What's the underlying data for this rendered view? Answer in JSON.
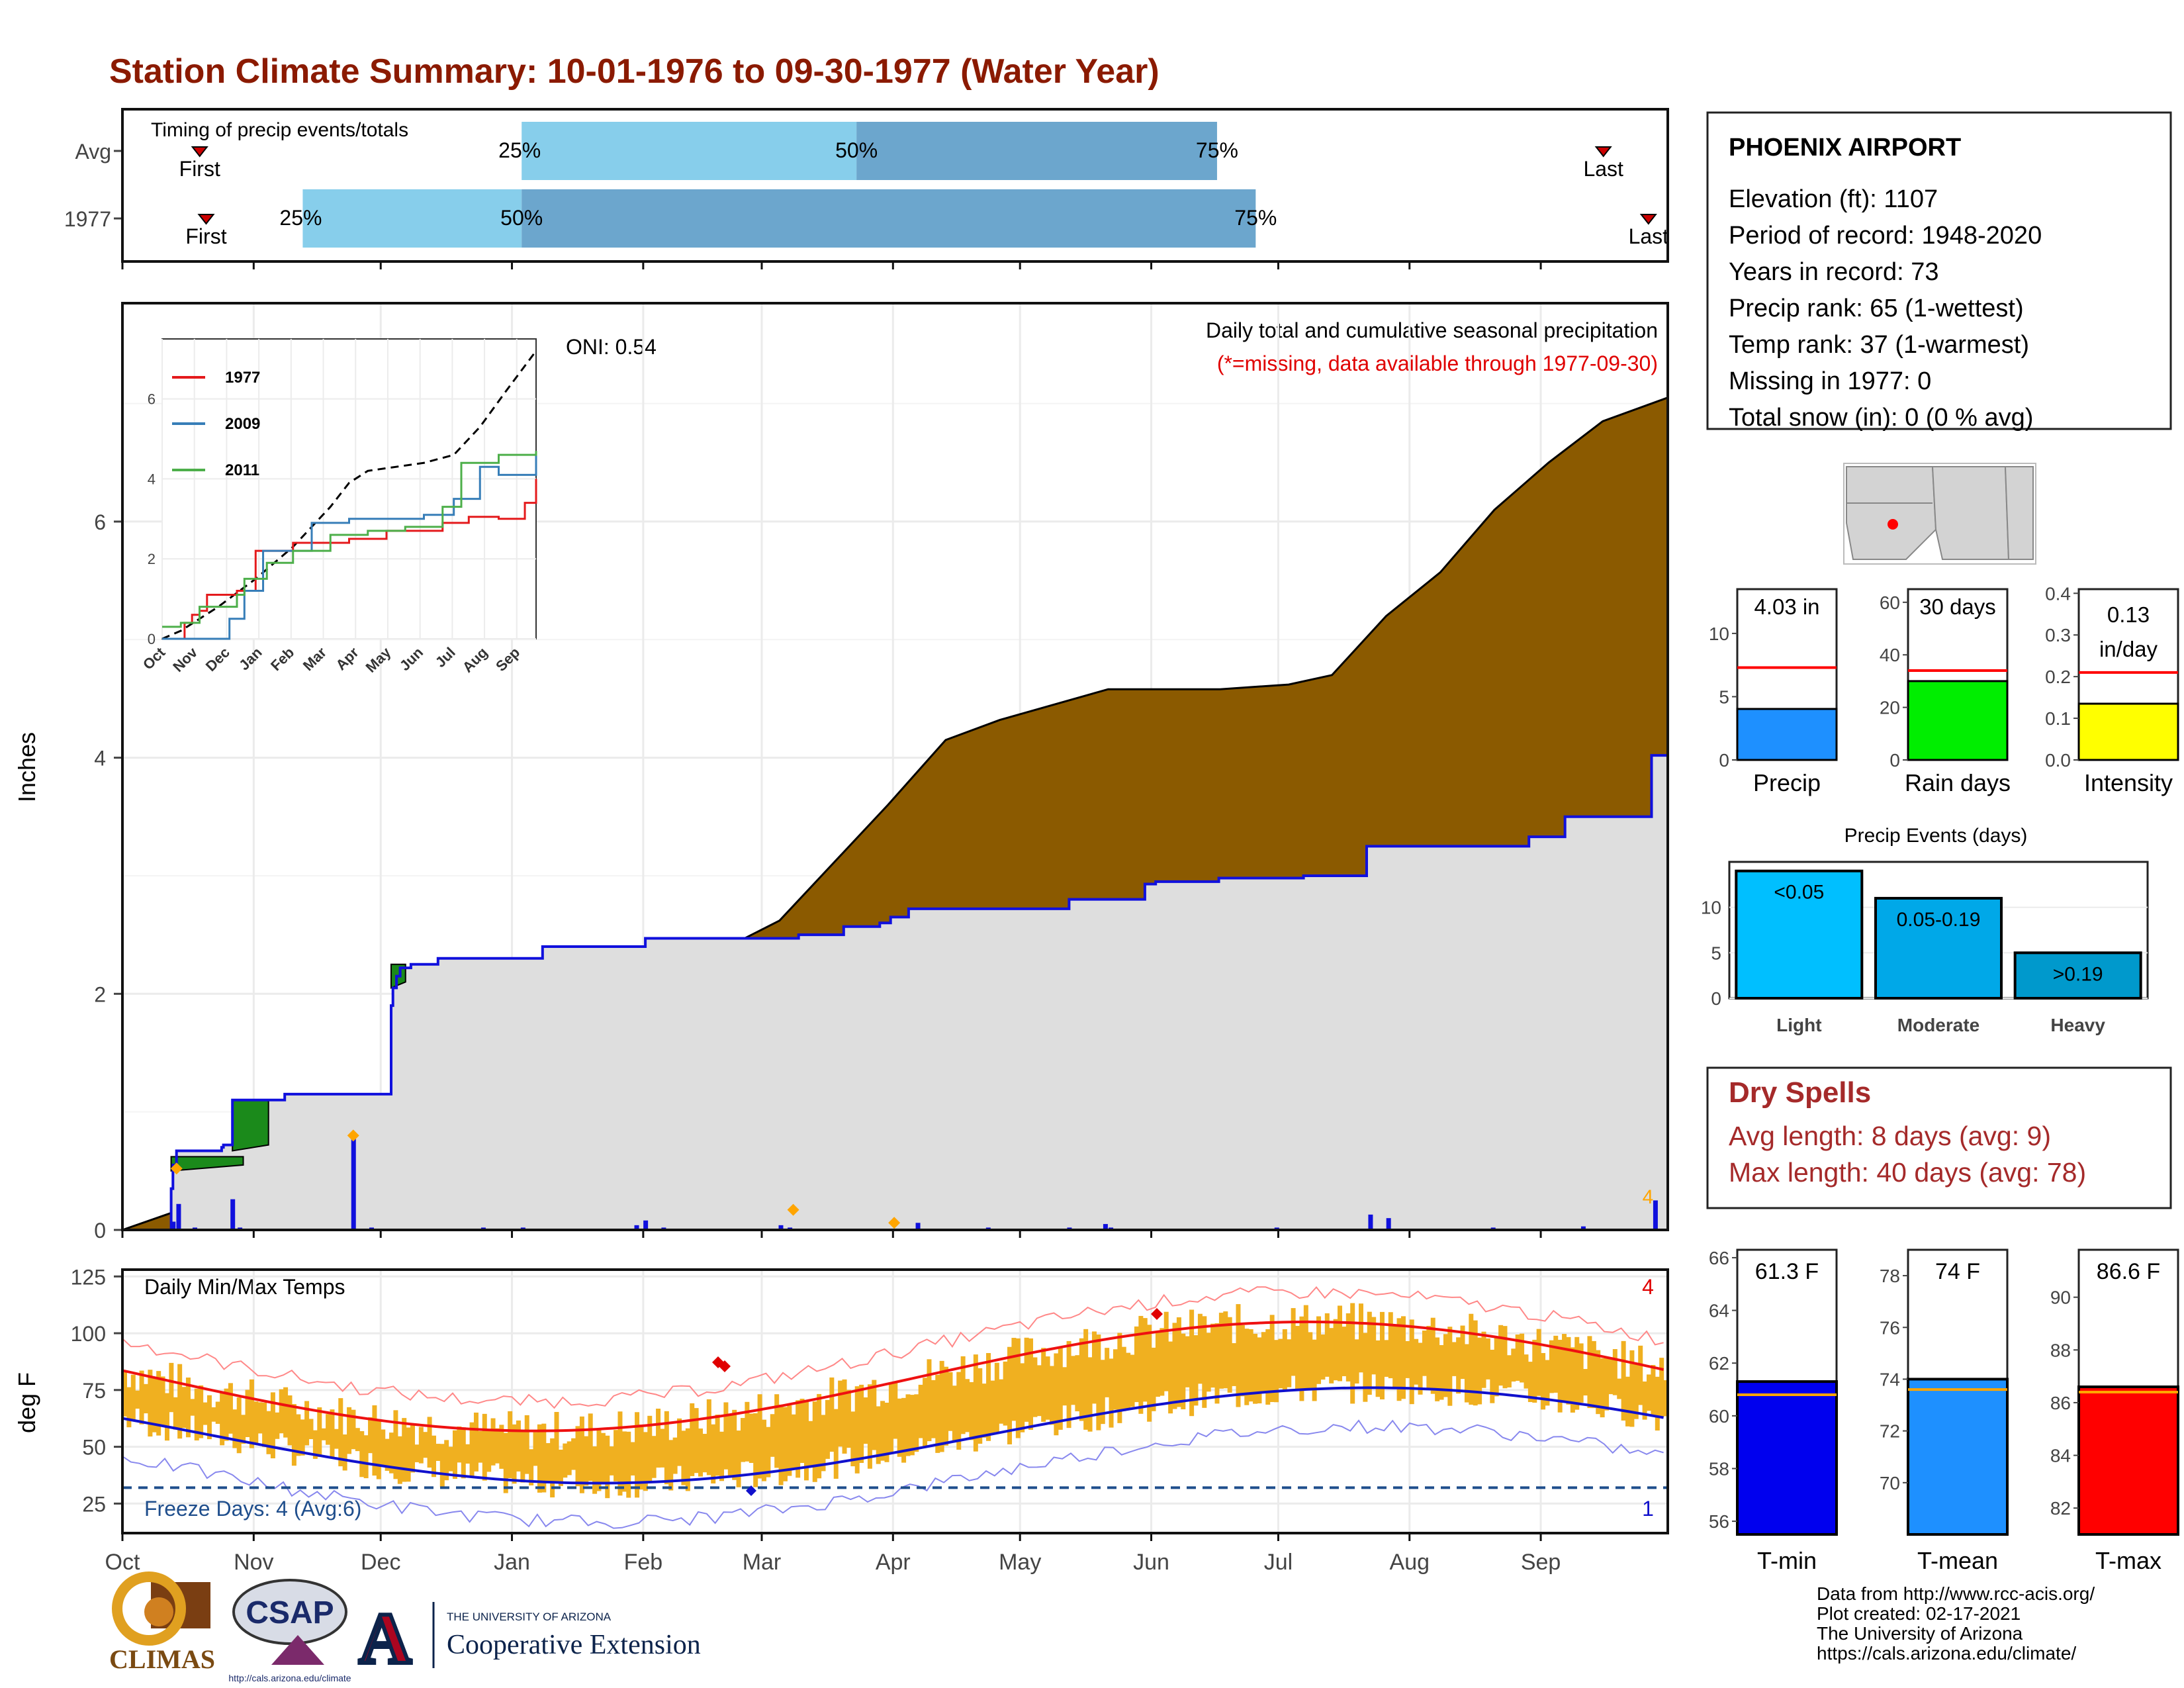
{
  "header": {
    "title": "Station Climate Summary: 10-01-1976 to 09-30-1977 (Water Year)"
  },
  "station": {
    "name": "PHOENIX AIRPORT",
    "lines": [
      "Elevation (ft): 1107",
      "Period of record: 1948-2020",
      "Years in record: 73",
      "Precip rank: 65 (1-wettest)",
      "Temp rank: 37 (1-warmest)",
      "Missing in 1977: 0",
      "Total snow (in): 0 (0 % avg)"
    ]
  },
  "timing": {
    "title": "Timing of precip events/totals",
    "rows": [
      {
        "label": "Avg",
        "first_month": 0.6,
        "q25": 3.1,
        "q50": 5.7,
        "q75": 8.5,
        "last_month": 11.5
      },
      {
        "label": "1977",
        "first_month": 0.65,
        "q25": 1.4,
        "q50": 3.1,
        "q75": 8.8,
        "last_month": 11.85
      }
    ],
    "labels": {
      "first": "First",
      "last": "Last",
      "p25": "25%",
      "p50": "50%",
      "p75": "75%"
    },
    "colors": {
      "light": "#87ceeb",
      "dark": "#6ca6cd",
      "marker": "#cc0000"
    }
  },
  "precip_panel": {
    "ylabel": "Inches",
    "oni": "ONI: 0.54",
    "caption": "Daily total and cumulative seasonal precipitation",
    "caption2": "(*=missing, data available through 1977-09-30)",
    "yticks": [
      0,
      2,
      4,
      6
    ],
    "colors": {
      "avg_fill": "#8b5a00",
      "year_fill": "#dedede",
      "above_fill": "#1b8a1b",
      "year_line": "#1010dd",
      "bars": "#1010dd",
      "diamond": "#ffa500"
    },
    "marker_label": "4"
  },
  "months": [
    "Oct",
    "Nov",
    "Dec",
    "Jan",
    "Feb",
    "Mar",
    "Apr",
    "May",
    "Jun",
    "Jul",
    "Aug",
    "Sep"
  ],
  "inset": {
    "yticks": [
      0,
      2,
      4,
      6
    ],
    "series": [
      {
        "name": "1977",
        "color": "#e41a1c"
      },
      {
        "name": "2009",
        "color": "#377eb8"
      },
      {
        "name": "2011",
        "color": "#4daf4a"
      }
    ]
  },
  "temp_panel": {
    "ylabel": "deg F",
    "title": "Daily Min/Max Temps",
    "freeze": "Freeze Days: 4 (Avg:6)",
    "yticks": [
      25,
      50,
      75,
      100,
      125
    ],
    "freeze_line": 32,
    "count_high": "4",
    "count_low": "1",
    "colors": {
      "bars": "#f0b020",
      "avg_max": "#ee1111",
      "avg_min": "#1111cc",
      "rec_max": "#ff8888",
      "rec_min": "#8888ee",
      "freeze": "#1f4e8c"
    }
  },
  "small_bars": [
    {
      "label": "Precip",
      "value_text": "4.03 in",
      "value": 4.03,
      "avg": 7.3,
      "ymax": 13.5,
      "yticks": [
        0,
        5,
        10
      ],
      "color": "#1e90ff"
    },
    {
      "label": "Rain days",
      "value_text": "30 days",
      "value": 30,
      "avg": 34,
      "ymax": 65,
      "yticks": [
        0,
        20,
        40,
        60
      ],
      "color": "#00ee00"
    },
    {
      "label": "Intensity",
      "value_text": "0.13 in/day",
      "value": 0.135,
      "avg": 0.21,
      "ymax": 0.41,
      "yticks": [
        0.0,
        0.1,
        0.2,
        0.3,
        0.4
      ],
      "color": "#ffff00"
    }
  ],
  "events": {
    "title": "Precip Events (days)",
    "categories": [
      "Light",
      "Moderate",
      "Heavy"
    ],
    "labels": [
      "<0.05",
      "0.05-0.19",
      ">0.19"
    ],
    "values": [
      14,
      11,
      5
    ],
    "yticks": [
      0,
      5,
      10
    ],
    "colors": [
      "#00bfff",
      "#00a8e8",
      "#0099cc"
    ]
  },
  "dry_spells": {
    "title": "Dry Spells",
    "avg_line": "Avg length: 8 days (avg: 9)",
    "max_line": "Max length: 40 days (avg: 78)",
    "color": "#a52a2a"
  },
  "temp_bars": [
    {
      "label": "T-min",
      "value_text": "61.3 F",
      "value": 61.3,
      "avg": 60.8,
      "ymin": 55.5,
      "ymax": 66.3,
      "yticks": [
        56,
        58,
        60,
        62,
        64,
        66
      ],
      "color": "#0000ee"
    },
    {
      "label": "T-mean",
      "value_text": "74 F",
      "value": 74.0,
      "avg": 73.6,
      "ymin": 68.0,
      "ymax": 79.0,
      "yticks": [
        70,
        72,
        74,
        76,
        78
      ],
      "color": "#1e90ff"
    },
    {
      "label": "T-max",
      "value_text": "86.6 F",
      "value": 86.6,
      "avg": 86.4,
      "ymin": 81.0,
      "ymax": 91.8,
      "yticks": [
        82,
        84,
        86,
        88,
        90
      ],
      "color": "#ff0000"
    }
  ],
  "footer": {
    "lines": [
      "Data from http://www.rcc-acis.org/",
      "Plot created: 02-17-2021",
      "The University of Arizona",
      "https://cals.arizona.edu/climate/"
    ],
    "logo_climas": "CLIMAS",
    "logo_csap": "CSAP",
    "logo_csap_url": "http://cals.arizona.edu/climate",
    "ua_small": "THE UNIVERSITY OF ARIZONA",
    "ua_big": "Cooperative Extension",
    "ua_letter": "A"
  }
}
